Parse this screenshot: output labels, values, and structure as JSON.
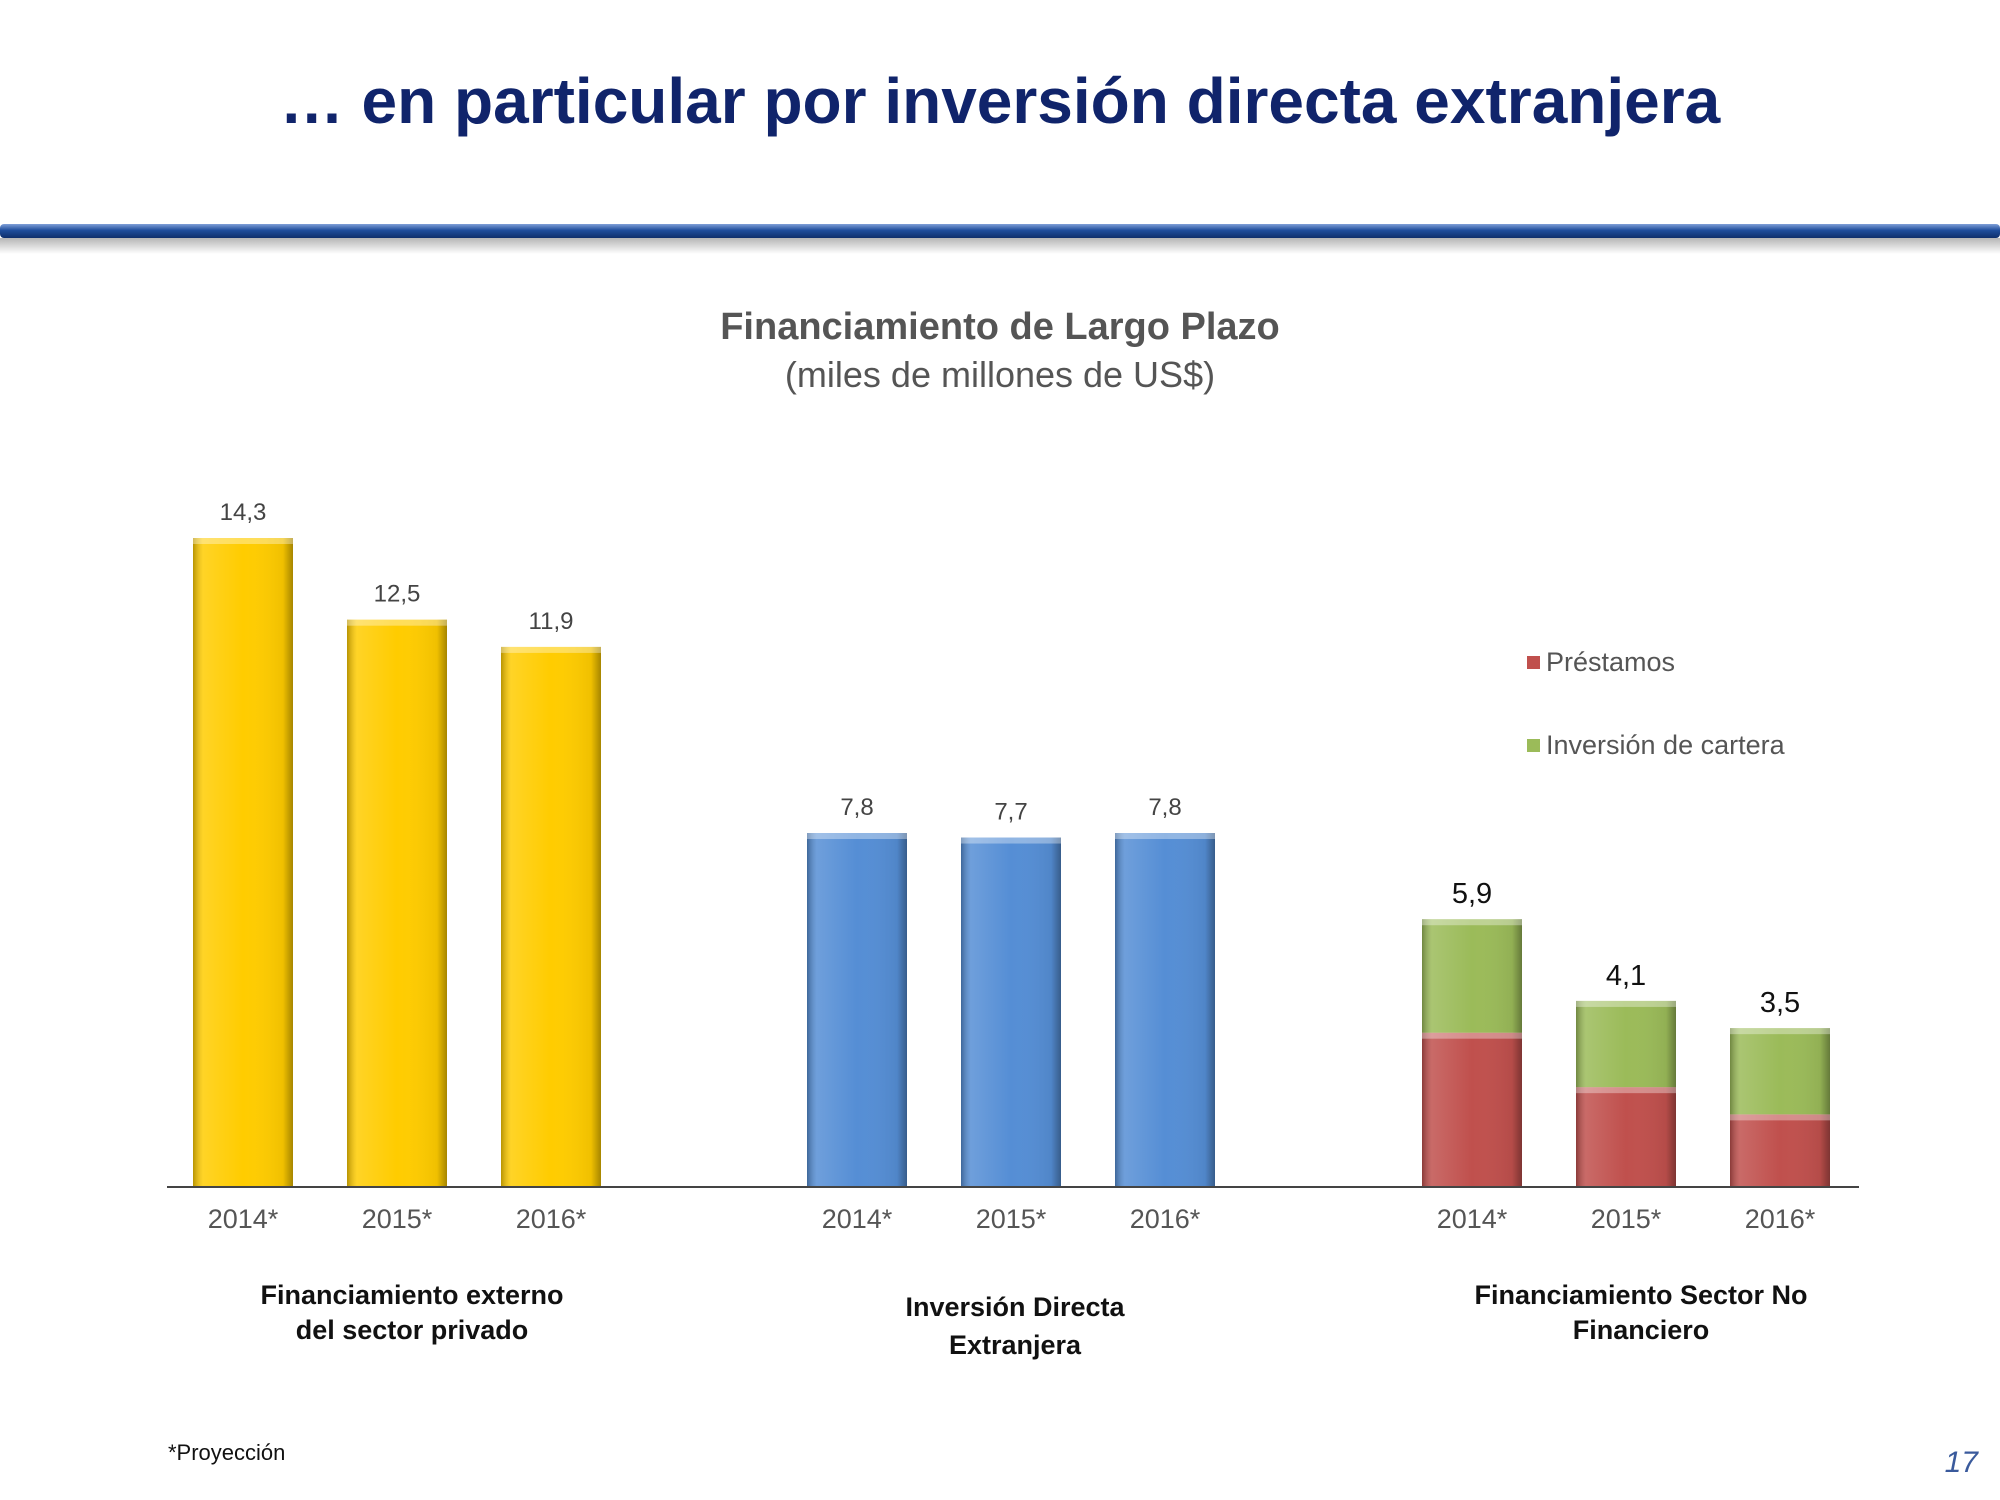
{
  "slide": {
    "title": "… en particular por inversión directa extranjera",
    "footnote": "*Proyección",
    "page_number": "17"
  },
  "chart_data": {
    "type": "bar",
    "title": "Financiamiento de Largo Plazo",
    "subtitle": "(miles de millones de US$)",
    "xlabel": "",
    "ylabel": "",
    "ylim": [
      0,
      14.3
    ],
    "grid": false,
    "legend": {
      "placement": "right",
      "entries": [
        {
          "name": "Préstamos",
          "color": "#c0504d"
        },
        {
          "name": "Inversión de cartera",
          "color": "#9bbb59"
        }
      ]
    },
    "groups": [
      {
        "caption_line1": "Financiamiento externo",
        "caption_line2": "del sector privado",
        "color": "#ffcc00",
        "categories": [
          "2014*",
          "2015*",
          "2016*"
        ],
        "values": [
          14.3,
          12.5,
          11.9
        ],
        "labels": [
          "14,3",
          "12,5",
          "11,9"
        ]
      },
      {
        "caption_line1": "Inversión Directa",
        "caption_line2": "Extranjera",
        "color": "#558ed5",
        "categories": [
          "2014*",
          "2015*",
          "2016*"
        ],
        "values": [
          7.8,
          7.7,
          7.8
        ],
        "labels": [
          "7,8",
          "7,7",
          "7,8"
        ]
      },
      {
        "caption_line1": "Financiamiento Sector No",
        "caption_line2": "Financiero",
        "stacked": true,
        "categories": [
          "2014*",
          "2015*",
          "2016*"
        ],
        "series": [
          {
            "name": "Préstamos",
            "color": "#c0504d",
            "values": [
              3.4,
              2.2,
              1.6
            ]
          },
          {
            "name": "Inversión de cartera",
            "color": "#9bbb59",
            "values": [
              2.5,
              1.9,
              1.9
            ]
          }
        ],
        "totals": [
          5.9,
          4.1,
          3.5
        ],
        "labels": [
          "5,9",
          "4,1",
          "3,5"
        ]
      }
    ]
  }
}
